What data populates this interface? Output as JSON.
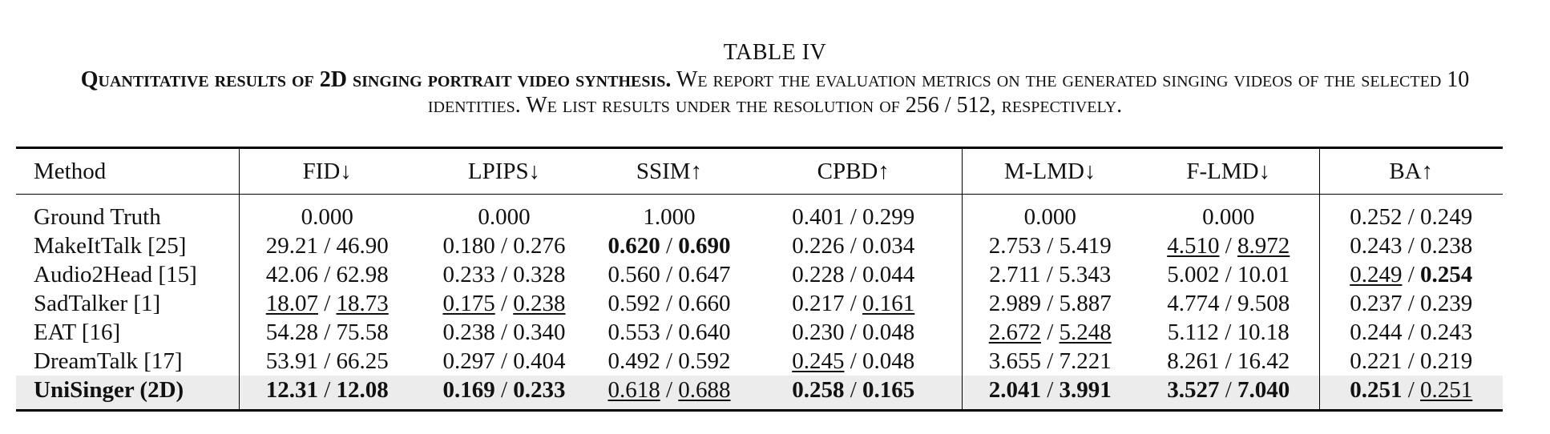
{
  "table": {
    "number": "TABLE IV",
    "caption_bold": "Quantitative results of 2D singing portrait video synthesis.",
    "caption_rest": " We report the evaluation metrics on the generated singing videos of the selected 10 identities. We list results under the resolution of 256 / 512, respectively.",
    "columns": [
      "Method",
      "FID↓",
      "LPIPS↓",
      "SSIM↑",
      "CPBD↑",
      "M-LMD↓",
      "F-LMD↓",
      "BA↑"
    ],
    "separator": " / ",
    "rows": [
      {
        "method": "Ground Truth",
        "method_bold": false,
        "highlight": false,
        "cells": [
          [
            [
              "0.000",
              ""
            ]
          ],
          [
            [
              "0.000",
              ""
            ]
          ],
          [
            [
              "1.000",
              ""
            ]
          ],
          [
            [
              "0.401",
              ""
            ],
            [
              "0.299",
              ""
            ]
          ],
          [
            [
              "0.000",
              ""
            ]
          ],
          [
            [
              "0.000",
              ""
            ]
          ],
          [
            [
              "0.252",
              ""
            ],
            [
              "0.249",
              ""
            ]
          ]
        ]
      },
      {
        "method": "MakeItTalk [25]",
        "method_bold": false,
        "highlight": false,
        "cells": [
          [
            [
              "29.21",
              ""
            ],
            [
              "46.90",
              ""
            ]
          ],
          [
            [
              "0.180",
              ""
            ],
            [
              "0.276",
              ""
            ]
          ],
          [
            [
              "0.620",
              "b"
            ],
            [
              "0.690",
              "b"
            ]
          ],
          [
            [
              "0.226",
              ""
            ],
            [
              "0.034",
              ""
            ]
          ],
          [
            [
              "2.753",
              ""
            ],
            [
              "5.419",
              ""
            ]
          ],
          [
            [
              "4.510",
              "u"
            ],
            [
              "8.972",
              "u"
            ]
          ],
          [
            [
              "0.243",
              ""
            ],
            [
              "0.238",
              ""
            ]
          ]
        ]
      },
      {
        "method": "Audio2Head [15]",
        "method_bold": false,
        "highlight": false,
        "cells": [
          [
            [
              "42.06",
              ""
            ],
            [
              "62.98",
              ""
            ]
          ],
          [
            [
              "0.233",
              ""
            ],
            [
              "0.328",
              ""
            ]
          ],
          [
            [
              "0.560",
              ""
            ],
            [
              "0.647",
              ""
            ]
          ],
          [
            [
              "0.228",
              ""
            ],
            [
              "0.044",
              ""
            ]
          ],
          [
            [
              "2.711",
              ""
            ],
            [
              "5.343",
              ""
            ]
          ],
          [
            [
              "5.002",
              ""
            ],
            [
              "10.01",
              ""
            ]
          ],
          [
            [
              "0.249",
              "u"
            ],
            [
              "0.254",
              "b"
            ]
          ]
        ]
      },
      {
        "method": "SadTalker [1]",
        "method_bold": false,
        "highlight": false,
        "cells": [
          [
            [
              "18.07",
              "u"
            ],
            [
              "18.73",
              "u"
            ]
          ],
          [
            [
              "0.175",
              "u"
            ],
            [
              "0.238",
              "u"
            ]
          ],
          [
            [
              "0.592",
              ""
            ],
            [
              "0.660",
              ""
            ]
          ],
          [
            [
              "0.217",
              ""
            ],
            [
              "0.161",
              "u"
            ]
          ],
          [
            [
              "2.989",
              ""
            ],
            [
              "5.887",
              ""
            ]
          ],
          [
            [
              "4.774",
              ""
            ],
            [
              "9.508",
              ""
            ]
          ],
          [
            [
              "0.237",
              ""
            ],
            [
              "0.239",
              ""
            ]
          ]
        ]
      },
      {
        "method": "EAT [16]",
        "method_bold": false,
        "highlight": false,
        "cells": [
          [
            [
              "54.28",
              ""
            ],
            [
              "75.58",
              ""
            ]
          ],
          [
            [
              "0.238",
              ""
            ],
            [
              "0.340",
              ""
            ]
          ],
          [
            [
              "0.553",
              ""
            ],
            [
              "0.640",
              ""
            ]
          ],
          [
            [
              "0.230",
              ""
            ],
            [
              "0.048",
              ""
            ]
          ],
          [
            [
              "2.672",
              "u"
            ],
            [
              "5.248",
              "u"
            ]
          ],
          [
            [
              "5.112",
              ""
            ],
            [
              "10.18",
              ""
            ]
          ],
          [
            [
              "0.244",
              ""
            ],
            [
              "0.243",
              ""
            ]
          ]
        ]
      },
      {
        "method": "DreamTalk [17]",
        "method_bold": false,
        "highlight": false,
        "cells": [
          [
            [
              "53.91",
              ""
            ],
            [
              "66.25",
              ""
            ]
          ],
          [
            [
              "0.297",
              ""
            ],
            [
              "0.404",
              ""
            ]
          ],
          [
            [
              "0.492",
              ""
            ],
            [
              "0.592",
              ""
            ]
          ],
          [
            [
              "0.245",
              "u"
            ],
            [
              "0.048",
              ""
            ]
          ],
          [
            [
              "3.655",
              ""
            ],
            [
              "7.221",
              ""
            ]
          ],
          [
            [
              "8.261",
              ""
            ],
            [
              "16.42",
              ""
            ]
          ],
          [
            [
              "0.221",
              ""
            ],
            [
              "0.219",
              ""
            ]
          ]
        ]
      },
      {
        "method": "UniSinger (2D)",
        "method_bold": true,
        "highlight": true,
        "cells": [
          [
            [
              "12.31",
              "b"
            ],
            [
              "12.08",
              "b"
            ]
          ],
          [
            [
              "0.169",
              "b"
            ],
            [
              "0.233",
              "b"
            ]
          ],
          [
            [
              "0.618",
              "u"
            ],
            [
              "0.688",
              "u"
            ]
          ],
          [
            [
              "0.258",
              "b"
            ],
            [
              "0.165",
              "b"
            ]
          ],
          [
            [
              "2.041",
              "b"
            ],
            [
              "3.991",
              "b"
            ]
          ],
          [
            [
              "3.527",
              "b"
            ],
            [
              "7.040",
              "b"
            ]
          ],
          [
            [
              "0.251",
              "b"
            ],
            [
              "0.251",
              "u"
            ]
          ]
        ]
      }
    ]
  }
}
